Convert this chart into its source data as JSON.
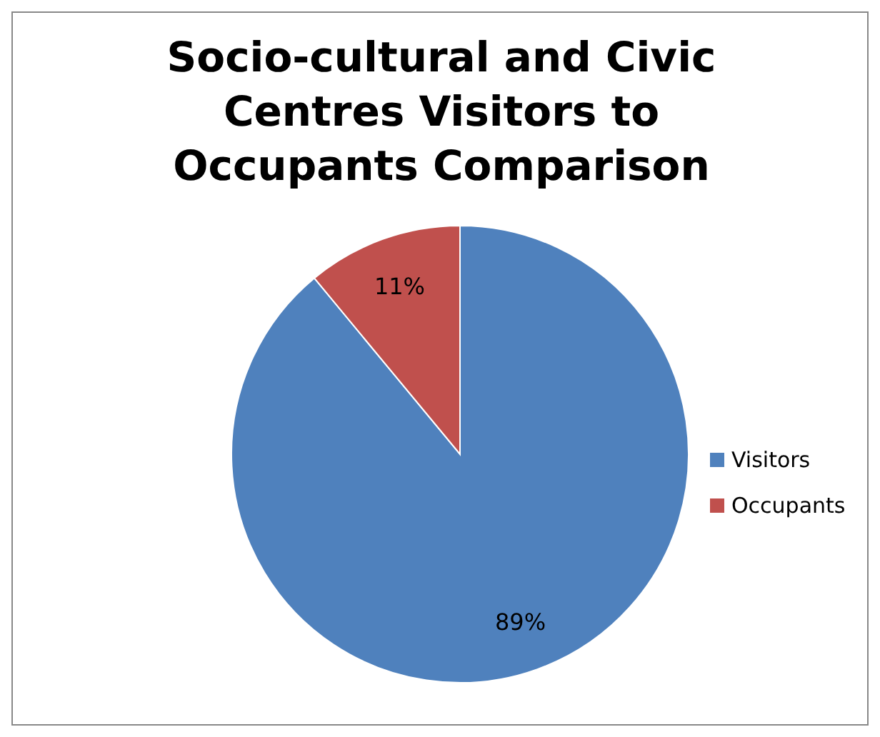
{
  "chart_data": {
    "type": "pie",
    "title": "Socio-cultural and Civic Centres Visitors to Occupants Comparison",
    "categories": [
      "Visitors",
      "Occupants"
    ],
    "values": [
      89,
      11
    ],
    "value_labels": [
      "89%",
      "11%"
    ],
    "colors": [
      "#4f81bd",
      "#c0504d"
    ],
    "legend": "right"
  }
}
